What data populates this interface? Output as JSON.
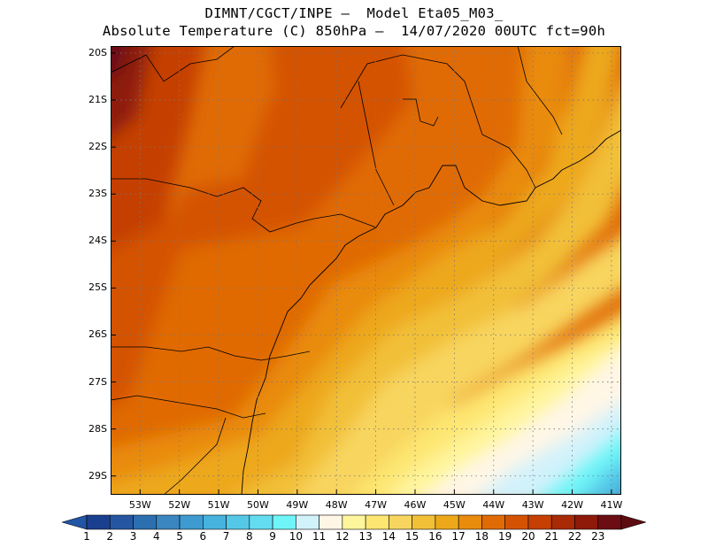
{
  "title": {
    "line1": "DIMNT/CGCT/INPE —  Model Eta05_M03_",
    "line2": "Absolute Temperature (C) 850hPa —  14/07/2020 00UTC fct=90h"
  },
  "map": {
    "lon_range": [
      -53.75,
      -40.75
    ],
    "lat_range": [
      -29.4,
      -19.85
    ],
    "lat_ticks": [
      "20S",
      "21S",
      "22S",
      "23S",
      "24S",
      "25S",
      "26S",
      "27S",
      "28S",
      "29S"
    ],
    "lat_values": [
      -20,
      -21,
      -22,
      -23,
      -24,
      -25,
      -26,
      -27,
      -28,
      -29
    ],
    "lon_ticks": [
      "53W",
      "52W",
      "51W",
      "50W",
      "49W",
      "48W",
      "47W",
      "46W",
      "45W",
      "44W",
      "43W",
      "42W",
      "41W"
    ],
    "lon_values": [
      -53,
      -52,
      -51,
      -50,
      -49,
      -48,
      -47,
      -46,
      -45,
      -44,
      -43,
      -42,
      -41
    ],
    "grid": true,
    "variable": "temperature_850hPa"
  },
  "colorbar": {
    "labels": [
      "1",
      "2",
      "3",
      "4",
      "5",
      "6",
      "7",
      "8",
      "9",
      "10",
      "11",
      "12",
      "13",
      "14",
      "15",
      "16",
      "17",
      "18",
      "19",
      "20",
      "21",
      "22",
      "23"
    ],
    "colors": [
      "#1b3f8f",
      "#2457a0",
      "#2c6fb0",
      "#3a86c0",
      "#3d9bd0",
      "#46b3df",
      "#55c8e8",
      "#63dcf0",
      "#6ff5f8",
      "#d2f2fb",
      "#fff6e6",
      "#fff59c",
      "#fde671",
      "#f8d55f",
      "#f2c037",
      "#eda81a",
      "#e98b0d",
      "#e06b05",
      "#d45303",
      "#c54002",
      "#a82a06",
      "#8e1a0a",
      "#6b0d12"
    ],
    "arrow_left_color": "#2255a4",
    "arrow_right_color": "#5d0c10"
  }
}
